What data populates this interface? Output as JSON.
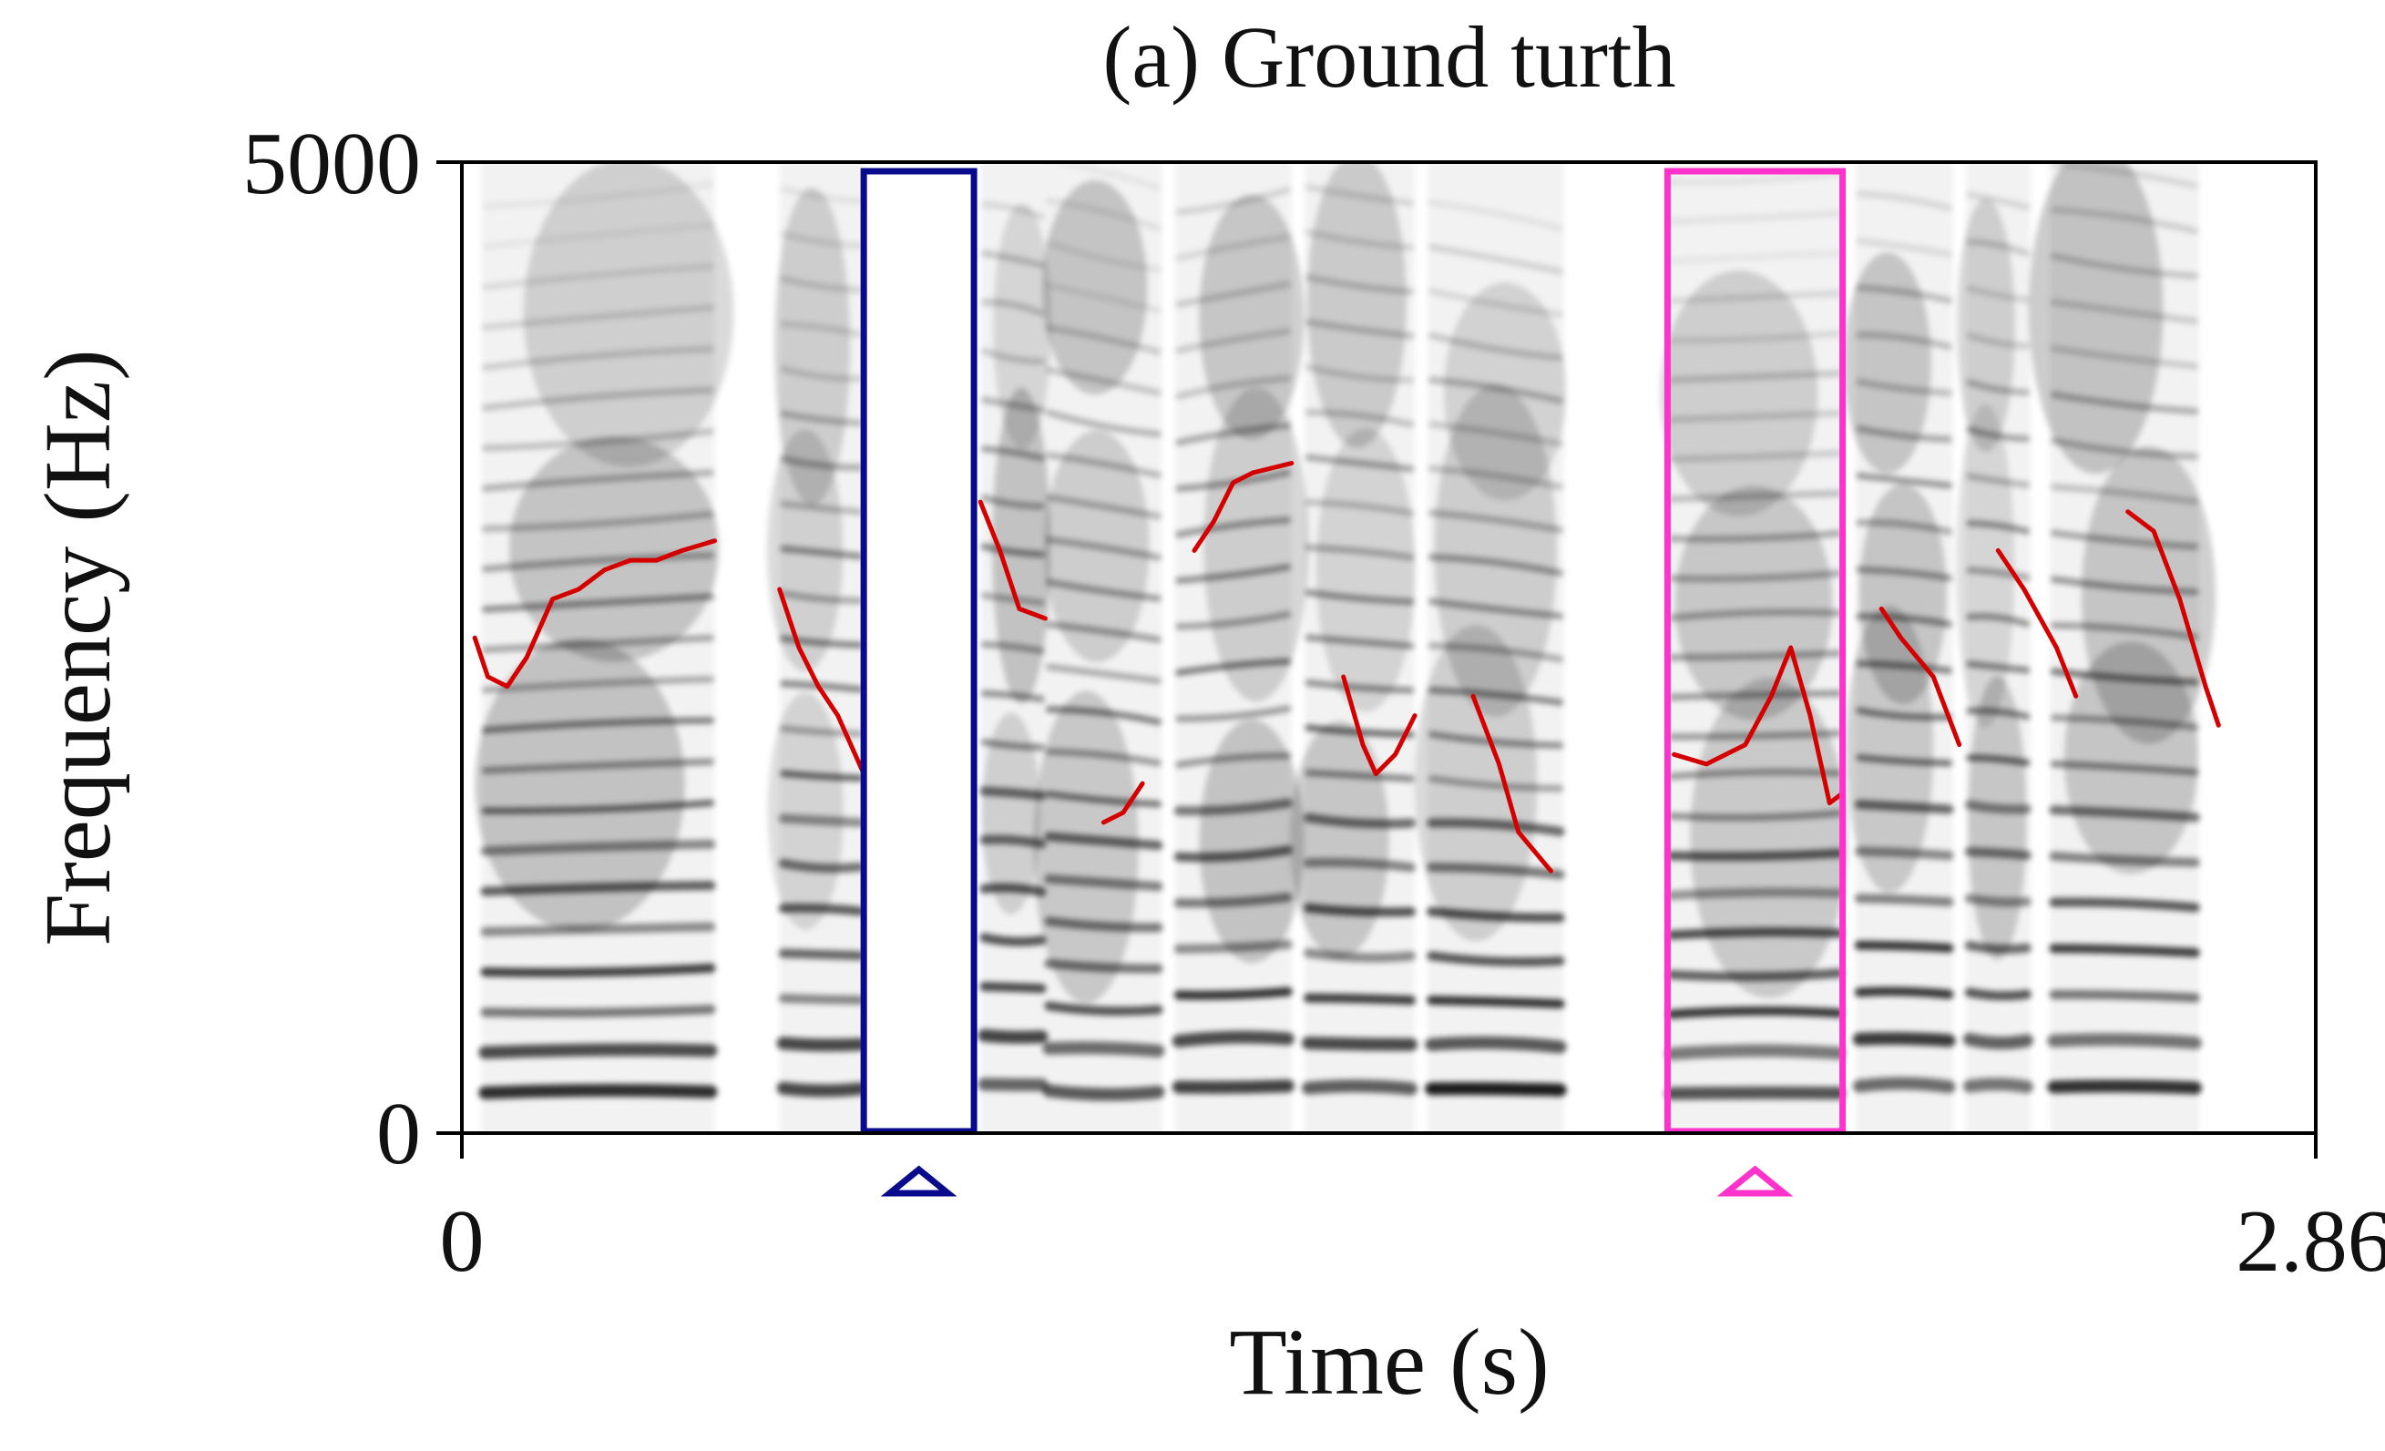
{
  "chart_data": {
    "type": "spectrogram",
    "title": "(a) Ground turth",
    "xlabel": "Time (s)",
    "ylabel": "Frequency (Hz)",
    "xlim": [
      0,
      2.86
    ],
    "ylim": [
      0,
      5000
    ],
    "x_tick_labels": [
      "0",
      "2.86"
    ],
    "y_tick_labels": [
      "0",
      "5000"
    ],
    "colors": {
      "spectrogram": "#000000",
      "pitch_contour": "#d40000",
      "highlight_1": "#0a0a8c",
      "highlight_2": "#ff33cc"
    },
    "highlight_regions": [
      {
        "name": "blue-region",
        "x_range": [
          0.62,
          0.79
        ],
        "color": "#0a0a8c"
      },
      {
        "name": "magenta-region",
        "x_range": [
          1.86,
          2.13
        ],
        "color": "#ff33cc"
      }
    ],
    "voiced_segments": [
      {
        "x_range": [
          0.03,
          0.39
        ],
        "harmonic_spacing_hz": 210,
        "tilt": -0.1
      },
      {
        "x_range": [
          0.49,
          0.62
        ],
        "harmonic_spacing_hz": 230,
        "tilt": 0.15
      },
      {
        "x_range": [
          0.8,
          0.9
        ],
        "harmonic_spacing_hz": 250,
        "tilt": 0.2
      },
      {
        "x_range": [
          0.9,
          1.08
        ],
        "harmonic_spacing_hz": 215,
        "tilt": 0.25
      },
      {
        "x_range": [
          1.1,
          1.28
        ],
        "harmonic_spacing_hz": 240,
        "tilt": -0.2
      },
      {
        "x_range": [
          1.3,
          1.47
        ],
        "harmonic_spacing_hz": 230,
        "tilt": 0.15
      },
      {
        "x_range": [
          1.49,
          1.7
        ],
        "harmonic_spacing_hz": 225,
        "tilt": 0.2
      },
      {
        "x_range": [
          1.86,
          2.13
        ],
        "harmonic_spacing_hz": 205,
        "tilt": -0.05
      },
      {
        "x_range": [
          2.15,
          2.3
        ],
        "harmonic_spacing_hz": 240,
        "tilt": 0.15
      },
      {
        "x_range": [
          2.32,
          2.42
        ],
        "harmonic_spacing_hz": 240,
        "tilt": 0.2
      },
      {
        "x_range": [
          2.45,
          2.68
        ],
        "harmonic_spacing_hz": 235,
        "tilt": 0.15
      }
    ],
    "series": [
      {
        "points": [
          [
            0.02,
            2550
          ],
          [
            0.04,
            2350
          ],
          [
            0.07,
            2300
          ],
          [
            0.1,
            2450
          ],
          [
            0.14,
            2750
          ],
          [
            0.18,
            2800
          ],
          [
            0.22,
            2900
          ],
          [
            0.26,
            2950
          ],
          [
            0.3,
            2950
          ],
          [
            0.34,
            3000
          ],
          [
            0.39,
            3050
          ]
        ]
      },
      {
        "points": [
          [
            0.49,
            2800
          ],
          [
            0.52,
            2500
          ],
          [
            0.55,
            2300
          ],
          [
            0.58,
            2150
          ],
          [
            0.62,
            1850
          ]
        ]
      },
      {
        "points": [
          [
            0.8,
            3250
          ],
          [
            0.83,
            3000
          ],
          [
            0.86,
            2700
          ],
          [
            0.9,
            2650
          ]
        ]
      },
      {
        "points": [
          [
            0.99,
            1600
          ],
          [
            1.02,
            1650
          ],
          [
            1.05,
            1800
          ]
        ]
      },
      {
        "points": [
          [
            1.13,
            3000
          ],
          [
            1.16,
            3150
          ],
          [
            1.19,
            3350
          ],
          [
            1.22,
            3400
          ],
          [
            1.28,
            3450
          ]
        ]
      },
      {
        "points": [
          [
            1.36,
            2350
          ],
          [
            1.39,
            2000
          ],
          [
            1.41,
            1850
          ],
          [
            1.44,
            1950
          ],
          [
            1.47,
            2150
          ]
        ]
      },
      {
        "points": [
          [
            1.56,
            2250
          ],
          [
            1.6,
            1900
          ],
          [
            1.63,
            1550
          ],
          [
            1.68,
            1350
          ]
        ]
      },
      {
        "points": [
          [
            1.87,
            1950
          ],
          [
            1.92,
            1900
          ],
          [
            1.98,
            2000
          ],
          [
            2.02,
            2250
          ],
          [
            2.05,
            2500
          ],
          [
            2.08,
            2150
          ],
          [
            2.11,
            1700
          ],
          [
            2.13,
            1750
          ]
        ]
      },
      {
        "points": [
          [
            2.19,
            2700
          ],
          [
            2.22,
            2550
          ],
          [
            2.27,
            2350
          ],
          [
            2.31,
            2000
          ]
        ]
      },
      {
        "points": [
          [
            2.37,
            3000
          ],
          [
            2.41,
            2800
          ],
          [
            2.46,
            2500
          ],
          [
            2.49,
            2250
          ]
        ]
      },
      {
        "points": [
          [
            2.57,
            3200
          ],
          [
            2.61,
            3100
          ],
          [
            2.65,
            2750
          ],
          [
            2.69,
            2300
          ],
          [
            2.71,
            2100
          ]
        ]
      }
    ]
  }
}
